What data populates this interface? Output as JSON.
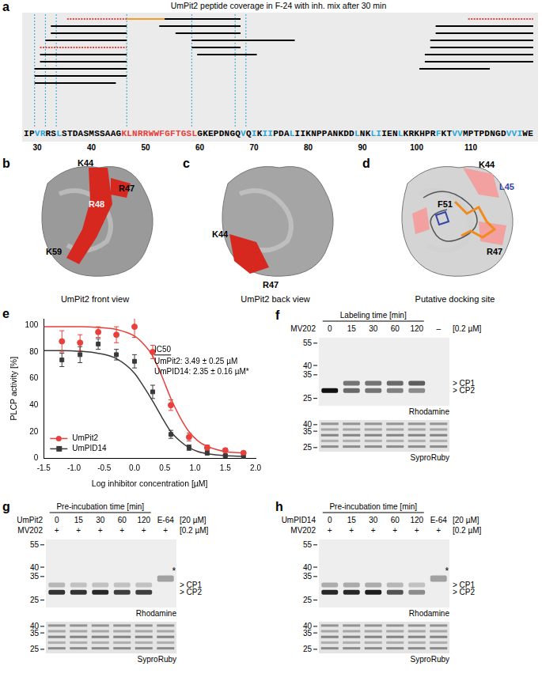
{
  "chart_data": {
    "type": "scatter",
    "panel": "e",
    "x": [
      -1.2,
      -0.9,
      -0.6,
      -0.3,
      0,
      0.3,
      0.6,
      0.9,
      1.2,
      1.5,
      1.8
    ],
    "series": [
      {
        "name": "UmPit2",
        "color": "#e8403c",
        "marker": "circle",
        "values": [
          88,
          87,
          95,
          93,
          99,
          80,
          40,
          16,
          8,
          6,
          4
        ],
        "errors": [
          8,
          6,
          4,
          6,
          8,
          5,
          4,
          3,
          2,
          1.5,
          1
        ],
        "fit": {
          "x": [
            -1.5,
            -1.2,
            -0.9,
            -0.6,
            -0.3,
            0,
            0.15,
            0.3,
            0.45,
            0.6,
            0.75,
            0.9,
            1.05,
            1.2,
            1.5,
            1.8
          ],
          "values": [
            99,
            99,
            99,
            98.5,
            97,
            92,
            86,
            77,
            62,
            45,
            31,
            20,
            13,
            9,
            5,
            4
          ]
        }
      },
      {
        "name": "UmPID14",
        "color": "#3a3a3a",
        "marker": "square",
        "values": [
          74,
          78,
          86,
          78,
          73,
          50,
          18,
          8,
          4,
          2,
          1
        ],
        "errors": [
          5,
          6,
          4,
          4,
          5,
          5,
          3,
          2,
          1.5,
          1,
          1
        ],
        "fit": {
          "x": [
            -1.5,
            -1.2,
            -0.9,
            -0.6,
            -0.3,
            0,
            0.15,
            0.3,
            0.45,
            0.6,
            0.75,
            0.9,
            1.05,
            1.2,
            1.5,
            1.8
          ],
          "values": [
            81,
            81,
            80.5,
            79,
            75,
            64,
            54,
            43,
            31,
            20,
            13,
            8,
            5,
            3.5,
            2,
            1.5
          ]
        }
      }
    ],
    "x_label": "Log inhibitor concentration [µM]",
    "y_label": "PLCP activity [%]",
    "xlim": [
      -1.5,
      2.0
    ],
    "xticks": [
      -1.5,
      {
        "value": -1,
        "label": "-1.0"
      },
      -0.5,
      {
        "value": 0,
        "label": "0.0"
      },
      0.5,
      {
        "value": 1,
        "label": "1.0"
      },
      1.5,
      {
        "value": 2,
        "label": "2.0"
      }
    ],
    "ylim": [
      0,
      105
    ],
    "yticks": [
      0,
      20,
      40,
      60,
      80,
      100
    ],
    "grid": false,
    "legend": "lower left",
    "annotations": {
      "title": "IC50",
      "lines": [
        "UmPit2: 3.49 ± 0.25 µM",
        "UmPID14: 2.35 ± 0.16 µM*"
      ]
    }
  },
  "panels": {
    "a": {
      "letter": "a",
      "title": "UmPit2 peptide coverage in F-24 with inh. mix after 30 min",
      "first_residue": 28,
      "sequence": [
        {
          "text": "IP",
          "color": "#000000"
        },
        {
          "text": "VR",
          "color": "#2aa7d8"
        },
        {
          "text": "RS",
          "color": "#000000"
        },
        {
          "text": "L",
          "color": "#2aa7d8"
        },
        {
          "text": "STDASMSSAAG",
          "color": "#000000"
        },
        {
          "text": "KLNRRWWFGFTGSL",
          "color": "#e8403c"
        },
        {
          "text": "GKEPDNGQ",
          "color": "#000000"
        },
        {
          "text": "V",
          "color": "#2aa7d8"
        },
        {
          "text": "Q",
          "color": "#000000"
        },
        {
          "text": "I",
          "color": "#2aa7d8"
        },
        {
          "text": "K",
          "color": "#000000"
        },
        {
          "text": "II",
          "color": "#2aa7d8"
        },
        {
          "text": "PDA",
          "color": "#000000"
        },
        {
          "text": "L",
          "color": "#2aa7d8"
        },
        {
          "text": "IIKNPPANKDD",
          "color": "#000000"
        },
        {
          "text": "L",
          "color": "#2aa7d8"
        },
        {
          "text": "NK",
          "color": "#000000"
        },
        {
          "text": "LI",
          "color": "#2aa7d8"
        },
        {
          "text": "IEN",
          "color": "#000000"
        },
        {
          "text": "L",
          "color": "#2aa7d8"
        },
        {
          "text": "KRKHPR",
          "color": "#000000"
        },
        {
          "text": "F",
          "color": "#2aa7d8"
        },
        {
          "text": "KT",
          "color": "#000000"
        },
        {
          "text": "VV",
          "color": "#2aa7d8"
        },
        {
          "text": "MPTPDNGD",
          "color": "#000000"
        },
        {
          "text": "VVI",
          "color": "#2aa7d8"
        },
        {
          "text": "WE",
          "color": "#000000"
        }
      ],
      "ticks": [
        30,
        40,
        50,
        60,
        70,
        80,
        90,
        100,
        110
      ],
      "boundaries": [
        29.5,
        31.5,
        33.5,
        46.5,
        58.5,
        66.5,
        68.5
      ],
      "peptides": [
        {
          "start": 36,
          "end": 46,
          "color": "#e8403c",
          "line_style": "dotted"
        },
        {
          "start": 33,
          "end": 46,
          "color": "#000000",
          "line_style": "solid"
        },
        {
          "start": 33,
          "end": 46,
          "color": "#000000",
          "line_style": "solid"
        },
        {
          "start": 32,
          "end": 46,
          "color": "#000000",
          "line_style": "solid"
        },
        {
          "start": 31,
          "end": 46,
          "color": "#e8403c",
          "line_style": "dotted"
        },
        {
          "start": 31,
          "end": 46,
          "color": "#000000",
          "line_style": "solid"
        },
        {
          "start": 31,
          "end": 46,
          "color": "#000000",
          "line_style": "solid"
        },
        {
          "start": 30,
          "end": 46,
          "color": "#000000",
          "line_style": "solid"
        },
        {
          "start": 30,
          "end": 46,
          "color": "#000000",
          "line_style": "solid"
        },
        {
          "start": 30,
          "end": 44,
          "color": "#000000",
          "line_style": "solid"
        },
        {
          "start": 47,
          "end": 53,
          "color": "#f39c2a",
          "line_style": "solid"
        },
        {
          "start": 53,
          "end": 67,
          "color": "#000000",
          "line_style": "solid"
        },
        {
          "start": 54,
          "end": 67,
          "color": "#000000",
          "line_style": "solid"
        },
        {
          "start": 56,
          "end": 67,
          "color": "#000000",
          "line_style": "solid"
        },
        {
          "start": 59,
          "end": 77,
          "color": "#000000",
          "line_style": "solid"
        },
        {
          "start": 59,
          "end": 67,
          "color": "#000000",
          "line_style": "solid"
        },
        {
          "start": 60,
          "end": 70,
          "color": "#000000",
          "line_style": "solid"
        },
        {
          "start": 110,
          "end": 121,
          "color": "#e8403c",
          "line_style": "dotted"
        },
        {
          "start": 104,
          "end": 121,
          "color": "#000000",
          "line_style": "solid"
        },
        {
          "start": 104,
          "end": 121,
          "color": "#000000",
          "line_style": "solid"
        },
        {
          "start": 103,
          "end": 121,
          "color": "#000000",
          "line_style": "solid"
        },
        {
          "start": 103,
          "end": 121,
          "color": "#000000",
          "line_style": "solid"
        },
        {
          "start": 102,
          "end": 121,
          "color": "#000000",
          "line_style": "solid"
        },
        {
          "start": 102,
          "end": 121,
          "color": "#000000",
          "line_style": "solid"
        },
        {
          "start": 101,
          "end": 113,
          "color": "#000000",
          "line_style": "solid"
        }
      ]
    },
    "b": {
      "letter": "b",
      "caption": "UmPit2 front view",
      "labels": [
        "K44",
        "R47",
        "R48",
        "K59"
      ]
    },
    "c": {
      "letter": "c",
      "caption": "UmPit2 back view",
      "labels": [
        "K44",
        "R47"
      ]
    },
    "d": {
      "letter": "d",
      "caption": "Putative docking site",
      "labels": [
        "K44",
        "L45",
        "R47",
        "F51"
      ]
    },
    "f": {
      "letter": "f",
      "header": "Labeling time [min]",
      "rows": [
        {
          "label": "MV202",
          "lanes": [
            "0",
            "15",
            "30",
            "60",
            "120",
            "–"
          ],
          "unit": "[0.2 µM]"
        }
      ],
      "rhodamine": {
        "label": "Rhodamine",
        "markers": [
          55,
          40,
          35,
          25
        ],
        "bands": [
          {
            "label": "> CP1",
            "kda": 31,
            "intensity": [
              0,
              0.55,
              0.55,
              0.6,
              0.65,
              0
            ]
          },
          {
            "label": "> CP2",
            "kda": 28,
            "intensity": [
              1,
              0.6,
              0.55,
              0.5,
              0.45,
              0
            ]
          }
        ]
      },
      "sypro": {
        "label": "SyproRuby",
        "markers": [
          40,
          35,
          25
        ]
      }
    },
    "g": {
      "letter": "g",
      "header": "Pre-incubation time [min]",
      "rows": [
        {
          "label": "UmPit2",
          "lanes": [
            "0",
            "15",
            "30",
            "60",
            "120",
            "E-64"
          ],
          "unit": "[20 µM]"
        },
        {
          "label": "MV202",
          "lanes": [
            "+",
            "+",
            "+",
            "+",
            "+",
            "+"
          ],
          "unit": "[0.2 µM]"
        }
      ],
      "rhodamine": {
        "label": "Rhodamine",
        "markers": [
          55,
          40,
          35,
          25
        ],
        "bands": [
          {
            "label": "> CP1",
            "kda": 31,
            "intensity": [
              0.25,
              0.2,
              0.2,
              0.2,
              0.2,
              0
            ]
          },
          {
            "label": "> CP2",
            "kda": 28,
            "intensity": [
              0.85,
              0.85,
              0.9,
              0.8,
              0.8,
              0
            ]
          }
        ],
        "star": {
          "label": "*",
          "kda": 34,
          "intensity": [
            0,
            0,
            0,
            0,
            0,
            0.35
          ]
        }
      },
      "sypro": {
        "label": "SyproRuby",
        "markers": [
          40,
          35,
          25
        ]
      }
    },
    "h": {
      "letter": "h",
      "header": "Pre-incubation time [min]",
      "rows": [
        {
          "label": "UmPID14",
          "lanes": [
            "0",
            "15",
            "30",
            "60",
            "120",
            "E-64"
          ],
          "unit": "[20 µM]"
        },
        {
          "label": "MV202",
          "lanes": [
            "+",
            "+",
            "+",
            "+",
            "+",
            "+"
          ],
          "unit": "[0.2 µM]"
        }
      ],
      "rhodamine": {
        "label": "Rhodamine",
        "markers": [
          55,
          40,
          35,
          25
        ],
        "bands": [
          {
            "label": "> CP1",
            "kda": 31,
            "intensity": [
              0.3,
              0.3,
              0.3,
              0.25,
              0.2,
              0
            ]
          },
          {
            "label": "> CP2",
            "kda": 28,
            "intensity": [
              0.9,
              0.9,
              0.95,
              0.7,
              0.45,
              0
            ]
          }
        ],
        "star": {
          "label": "*",
          "kda": 34,
          "intensity": [
            0,
            0,
            0,
            0,
            0,
            0.35
          ]
        }
      },
      "sypro": {
        "label": "SyproRuby",
        "markers": [
          40,
          35,
          25
        ]
      }
    }
  }
}
